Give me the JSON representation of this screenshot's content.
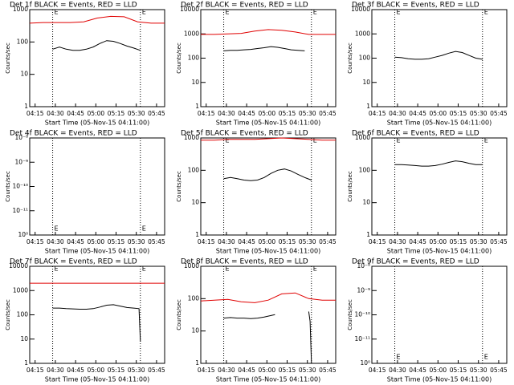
{
  "chart_data": [
    {
      "type": "line",
      "title": "Det 1f BLACK = Events, RED = LLD",
      "x_label": "Start Time (05-Nov-15 04:11:00)",
      "y_label": "Counts/sec",
      "log_y": true,
      "xlim": [
        "04:11",
        "05:51"
      ],
      "xticks": [
        "04:15",
        "04:30",
        "04:45",
        "05:00",
        "05:15",
        "05:30",
        "05:45"
      ],
      "ylim": [
        1,
        1000
      ],
      "yticks": [
        1,
        10,
        100,
        1000
      ],
      "markers": [
        {
          "x": "04:28",
          "label": "E"
        },
        {
          "x": "05:33",
          "label": "E"
        }
      ],
      "marker_position": "top",
      "series": [
        {
          "color": "#e00000",
          "x": [
            "04:11",
            "04:21",
            "04:31",
            "04:41",
            "04:51",
            "05:01",
            "05:11",
            "05:21",
            "05:31",
            "05:41",
            "05:51"
          ],
          "values": [
            380,
            400,
            400,
            400,
            420,
            550,
            620,
            600,
            420,
            380,
            380
          ]
        },
        {
          "color": "#000000",
          "x": [
            "04:28",
            "04:33",
            "04:38",
            "04:43",
            "04:48",
            "04:53",
            "04:58",
            "05:03",
            "05:08",
            "05:13",
            "05:18",
            "05:23",
            "05:28",
            "05:33"
          ],
          "values": [
            60,
            70,
            60,
            55,
            55,
            60,
            70,
            90,
            110,
            105,
            90,
            75,
            65,
            55
          ]
        }
      ]
    },
    {
      "type": "line",
      "title": "Det 2f BLACK = Events, RED = LLD",
      "x_label": "Start Time (05-Nov-15 04:11:00)",
      "y_label": "Counts/sec",
      "log_y": true,
      "xlim": [
        "04:11",
        "05:51"
      ],
      "xticks": [
        "04:15",
        "04:30",
        "04:45",
        "05:00",
        "05:15",
        "05:30",
        "05:45"
      ],
      "ylim": [
        1,
        10000
      ],
      "yticks": [
        1,
        10,
        100,
        1000,
        10000
      ],
      "markers": [
        {
          "x": "04:28",
          "label": "E"
        },
        {
          "x": "05:33",
          "label": "E"
        }
      ],
      "marker_position": "top",
      "series": [
        {
          "color": "#e00000",
          "x": [
            "04:11",
            "04:21",
            "04:31",
            "04:41",
            "04:51",
            "05:01",
            "05:11",
            "05:21",
            "05:31",
            "05:41",
            "05:51"
          ],
          "values": [
            950,
            950,
            1000,
            1050,
            1300,
            1500,
            1400,
            1200,
            950,
            950,
            950
          ]
        },
        {
          "color": "#000000",
          "x": [
            "04:28",
            "04:33",
            "04:38",
            "04:43",
            "04:48",
            "04:53",
            "04:58",
            "05:03",
            "05:08",
            "05:13",
            "05:18",
            "05:23",
            "05:28"
          ],
          "values": [
            200,
            210,
            210,
            220,
            230,
            250,
            270,
            300,
            280,
            250,
            220,
            210,
            200
          ]
        }
      ]
    },
    {
      "type": "line",
      "title": "Det 3f BLACK = Events, RED = LLD",
      "x_label": "Start Time (05-Nov-15 04:11:00)",
      "y_label": "Counts/sec",
      "log_y": true,
      "xlim": [
        "04:11",
        "05:51"
      ],
      "xticks": [
        "04:15",
        "04:30",
        "04:45",
        "05:00",
        "05:15",
        "05:30",
        "05:45"
      ],
      "ylim": [
        1,
        10000
      ],
      "yticks": [
        1,
        10,
        100,
        1000,
        10000
      ],
      "markers": [
        {
          "x": "04:28",
          "label": "E"
        },
        {
          "x": "05:33",
          "label": "E"
        }
      ],
      "marker_position": "top",
      "series": [
        {
          "color": "#000000",
          "x": [
            "04:28",
            "04:33",
            "04:38",
            "04:43",
            "04:48",
            "04:53",
            "04:58",
            "05:03",
            "05:08",
            "05:13",
            "05:18",
            "05:23",
            "05:28",
            "05:33"
          ],
          "values": [
            110,
            105,
            95,
            90,
            90,
            95,
            110,
            130,
            160,
            190,
            170,
            130,
            100,
            90
          ]
        }
      ]
    },
    {
      "type": "line",
      "title": "Det 4f BLACK = Events, RED = LLD",
      "x_label": "Start Time (05-Nov-15 04:11:00)",
      "y_label": "Counts/sec",
      "log_y": true,
      "xlim": [
        "04:11",
        "05:51"
      ],
      "xticks": [
        "04:15",
        "04:30",
        "04:45",
        "05:00",
        "05:15",
        "05:30",
        "05:45"
      ],
      "ylim": [
        1,
        10000
      ],
      "yticks": [
        {
          "value": 1,
          "label": "10⁰"
        },
        {
          "value": 10,
          "label": "10⁻¹¹"
        },
        {
          "value": 100,
          "label": "10⁻¹⁰"
        },
        {
          "value": 1000,
          "label": "10⁻⁹"
        },
        {
          "value": 10000,
          "label": "10⁻⁸"
        }
      ],
      "markers": [
        {
          "x": "04:28",
          "label": "E"
        },
        {
          "x": "05:33",
          "label": "E"
        }
      ],
      "marker_position": "bottom",
      "series": []
    },
    {
      "type": "line",
      "title": "Det 5f BLACK = Events, RED = LLD",
      "x_label": "Start Time (05-Nov-15 04:11:00)",
      "y_label": "Counts/sec",
      "log_y": true,
      "xlim": [
        "04:11",
        "05:51"
      ],
      "xticks": [
        "04:15",
        "04:30",
        "04:45",
        "05:00",
        "05:15",
        "05:30",
        "05:45"
      ],
      "ylim": [
        1,
        1000
      ],
      "yticks": [
        1,
        10,
        100,
        1000
      ],
      "markers": [
        {
          "x": "04:28",
          "label": "E"
        },
        {
          "x": "05:33",
          "label": "E"
        }
      ],
      "marker_position": "top",
      "series": [
        {
          "color": "#e00000",
          "x": [
            "04:11",
            "04:21",
            "04:31",
            "04:41",
            "04:51",
            "05:01",
            "05:11",
            "05:21",
            "05:31",
            "05:41",
            "05:51"
          ],
          "values": [
            850,
            850,
            900,
            900,
            900,
            950,
            1000,
            950,
            900,
            850,
            850
          ]
        },
        {
          "color": "#000000",
          "x": [
            "04:28",
            "04:33",
            "04:38",
            "04:43",
            "04:48",
            "04:53",
            "04:58",
            "05:03",
            "05:08",
            "05:13",
            "05:18",
            "05:23",
            "05:28",
            "05:33"
          ],
          "values": [
            55,
            60,
            55,
            50,
            48,
            50,
            60,
            80,
            100,
            110,
            95,
            75,
            60,
            50
          ]
        }
      ]
    },
    {
      "type": "line",
      "title": "Det 6f BLACK = Events, RED = LLD",
      "x_label": "Start Time (05-Nov-15 04:11:00)",
      "y_label": "Counts/sec",
      "log_y": true,
      "xlim": [
        "04:11",
        "05:51"
      ],
      "xticks": [
        "04:15",
        "04:30",
        "04:45",
        "05:00",
        "05:15",
        "05:30",
        "05:45"
      ],
      "ylim": [
        1,
        1000
      ],
      "yticks": [
        1,
        10,
        100,
        1000
      ],
      "markers": [
        {
          "x": "04:28",
          "label": "E"
        },
        {
          "x": "05:33",
          "label": "E"
        }
      ],
      "marker_position": "top",
      "series": [
        {
          "color": "#000000",
          "x": [
            "04:28",
            "04:33",
            "04:38",
            "04:43",
            "04:48",
            "04:53",
            "04:58",
            "05:03",
            "05:08",
            "05:13",
            "05:18",
            "05:23",
            "05:28",
            "05:33"
          ],
          "values": [
            150,
            150,
            145,
            140,
            135,
            135,
            140,
            155,
            175,
            195,
            185,
            165,
            150,
            150
          ]
        }
      ]
    },
    {
      "type": "line",
      "title": "Det 7f BLACK = Events, RED = LLD",
      "x_label": "Start Time (05-Nov-15 04:11:00)",
      "y_label": "Counts/sec",
      "log_y": true,
      "xlim": [
        "04:11",
        "05:51"
      ],
      "xticks": [
        "04:15",
        "04:30",
        "04:45",
        "05:00",
        "05:15",
        "05:30",
        "05:45"
      ],
      "ylim": [
        1,
        10000
      ],
      "yticks": [
        1,
        10,
        100,
        1000,
        10000
      ],
      "markers": [
        {
          "x": "04:28",
          "label": "E"
        },
        {
          "x": "05:33",
          "label": "E"
        }
      ],
      "marker_position": "top",
      "series": [
        {
          "color": "#e00000",
          "x": [
            "04:11",
            "04:21",
            "04:31",
            "04:41",
            "04:51",
            "05:01",
            "05:11",
            "05:21",
            "05:31",
            "05:41",
            "05:51"
          ],
          "values": [
            2000,
            2000,
            2000,
            2000,
            2000,
            2000,
            2000,
            2000,
            2000,
            2000,
            2000
          ]
        },
        {
          "color": "#000000",
          "x": [
            "04:28",
            "04:33",
            "04:38",
            "04:43",
            "04:48",
            "04:53",
            "04:58",
            "05:03",
            "05:08",
            "05:13",
            "05:18",
            "05:23",
            "05:28",
            "05:32",
            "05:33"
          ],
          "values": [
            190,
            190,
            180,
            175,
            170,
            170,
            180,
            210,
            250,
            260,
            230,
            200,
            190,
            180,
            8
          ]
        }
      ]
    },
    {
      "type": "line",
      "title": "Det 8f BLACK = Events, RED = LLD",
      "x_label": "Start Time (05-Nov-15 04:11:00)",
      "y_label": "Counts/sec",
      "log_y": true,
      "xlim": [
        "04:11",
        "05:51"
      ],
      "xticks": [
        "04:15",
        "04:30",
        "04:45",
        "05:00",
        "05:15",
        "05:30",
        "05:45"
      ],
      "ylim": [
        1,
        1000
      ],
      "yticks": [
        1,
        10,
        100,
        1000
      ],
      "markers": [
        {
          "x": "04:28",
          "label": "E"
        },
        {
          "x": "05:33",
          "label": "E"
        }
      ],
      "marker_position": "top",
      "series": [
        {
          "color": "#e00000",
          "x": [
            "04:11",
            "04:21",
            "04:31",
            "04:41",
            "04:51",
            "05:01",
            "05:11",
            "05:21",
            "05:31",
            "05:41",
            "05:51"
          ],
          "values": [
            85,
            90,
            95,
            80,
            75,
            90,
            140,
            150,
            100,
            90,
            90
          ]
        },
        {
          "color": "#000000",
          "x": [
            "04:28",
            "04:33",
            "04:38",
            "04:43",
            "04:48",
            "04:53",
            "04:58",
            "05:03",
            "05:06",
            "05:07",
            "05:31",
            "05:32",
            "05:33"
          ],
          "values": [
            25,
            26,
            25,
            25,
            24,
            25,
            27,
            30,
            32,
            null,
            40,
            20,
            1
          ]
        }
      ]
    },
    {
      "type": "line",
      "title": "Det 9f BLACK = Events, RED = LLD",
      "x_label": "Start Time (05-Nov-15 04:11:00)",
      "y_label": "Counts/sec",
      "log_y": true,
      "xlim": [
        "04:11",
        "05:51"
      ],
      "xticks": [
        "04:15",
        "04:30",
        "04:45",
        "05:00",
        "05:15",
        "05:30",
        "05:45"
      ],
      "ylim": [
        1,
        10000
      ],
      "yticks": [
        {
          "value": 1,
          "label": "10⁰"
        },
        {
          "value": 10,
          "label": "10⁻¹¹"
        },
        {
          "value": 100,
          "label": "10⁻¹⁰"
        },
        {
          "value": 1000,
          "label": "10⁻⁹"
        },
        {
          "value": 10000,
          "label": "10⁻⁸"
        }
      ],
      "markers": [
        {
          "x": "04:28",
          "label": "E"
        },
        {
          "x": "05:33",
          "label": "E"
        }
      ],
      "marker_position": "bottom",
      "series": []
    }
  ]
}
